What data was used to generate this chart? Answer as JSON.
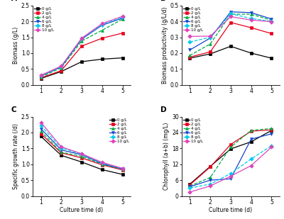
{
  "days": [
    1,
    2,
    3,
    4,
    5
  ],
  "panel_A": {
    "title": "A",
    "ylabel": "Biomass (g/L)",
    "ylim": [
      0,
      2.5
    ],
    "yticks": [
      0,
      0.5,
      1.0,
      1.5,
      2.0,
      2.5
    ],
    "series": {
      "0 g/L": [
        0.2,
        0.42,
        0.73,
        0.81,
        0.85
      ],
      "2 g/L": [
        0.22,
        0.45,
        1.22,
        1.47,
        1.63
      ],
      "4 g/L": [
        0.24,
        0.54,
        1.38,
        1.72,
        2.07
      ],
      "6 g/L": [
        0.28,
        0.57,
        1.44,
        1.88,
        2.1
      ],
      "8 g/L": [
        0.29,
        0.58,
        1.46,
        1.9,
        2.13
      ],
      "10 g/L": [
        0.3,
        0.59,
        1.47,
        1.93,
        2.16
      ]
    }
  },
  "panel_B": {
    "title": "B",
    "ylabel": "Biomass productivity (g/L/d)",
    "ylim": [
      0,
      0.5
    ],
    "yticks": [
      0,
      0.1,
      0.2,
      0.3,
      0.4,
      0.5
    ],
    "series": {
      "0 g/L": [
        0.168,
        0.195,
        0.243,
        0.2,
        0.168
      ],
      "2 g/L": [
        0.175,
        0.208,
        0.393,
        0.36,
        0.323
      ],
      "4 g/L": [
        0.185,
        0.258,
        0.445,
        0.445,
        0.407
      ],
      "6 g/L": [
        0.22,
        0.295,
        0.46,
        0.455,
        0.415
      ],
      "8 g/L": [
        0.27,
        0.3,
        0.448,
        0.418,
        0.4
      ],
      "10 g/L": [
        0.305,
        0.307,
        0.43,
        0.408,
        0.398
      ]
    }
  },
  "panel_C": {
    "title": "C",
    "ylabel": "Specific growth rate (/d)",
    "xlabel": "Culture time (d)",
    "ylim": [
      0,
      2.5
    ],
    "yticks": [
      0,
      0.5,
      1.0,
      1.5,
      2.0,
      2.5
    ],
    "series": {
      "0 g/L": [
        1.88,
        1.28,
        1.07,
        0.83,
        0.68
      ],
      "2 g/L": [
        1.96,
        1.36,
        1.2,
        0.98,
        0.82
      ],
      "4 g/L": [
        2.04,
        1.38,
        1.25,
        1.0,
        0.84
      ],
      "6 g/L": [
        2.12,
        1.45,
        1.3,
        1.02,
        0.85
      ],
      "8 g/L": [
        2.22,
        1.51,
        1.32,
        1.04,
        0.86
      ],
      "10 g/L": [
        2.32,
        1.55,
        1.33,
        1.06,
        0.87
      ]
    }
  },
  "panel_D": {
    "title": "D",
    "ylabel": "Chlorophyll (a+b) (mg/L)",
    "xlabel": "Culture time (d)",
    "ylim": [
      0,
      30
    ],
    "yticks": [
      0,
      6,
      12,
      18,
      24,
      30
    ],
    "series": {
      "0 g/L": [
        4.5,
        11.2,
        17.8,
        20.5,
        24.8
      ],
      "2 g/L": [
        4.2,
        11.0,
        19.5,
        24.5,
        25.0
      ],
      "4 g/L": [
        3.8,
        7.0,
        18.5,
        24.8,
        25.5
      ],
      "6 g/L": [
        3.5,
        6.0,
        6.5,
        21.5,
        23.5
      ],
      "8 g/L": [
        3.0,
        4.5,
        8.5,
        14.0,
        19.0
      ],
      "10 g/L": [
        1.5,
        3.8,
        7.5,
        11.5,
        18.5
      ]
    }
  },
  "colors": {
    "0 g/L": "#000000",
    "2 g/L": "#e8001c",
    "4 g/L": "#00aa44",
    "6 g/L": "#1144cc",
    "8 g/L": "#00ccee",
    "10 g/L": "#dd44bb"
  },
  "linestyles": {
    "0 g/L": "-",
    "2 g/L": "-",
    "4 g/L": "--",
    "6 g/L": "-",
    "8 g/L": "--",
    "10 g/L": "-"
  },
  "markers": {
    "0 g/L": "s",
    "2 g/L": "s",
    "4 g/L": "^",
    "6 g/L": "v",
    "8 g/L": "D",
    "10 g/L": "D"
  },
  "legend_loc": {
    "A": "upper left",
    "B": "upper left",
    "C": "upper right",
    "D": "upper left"
  }
}
